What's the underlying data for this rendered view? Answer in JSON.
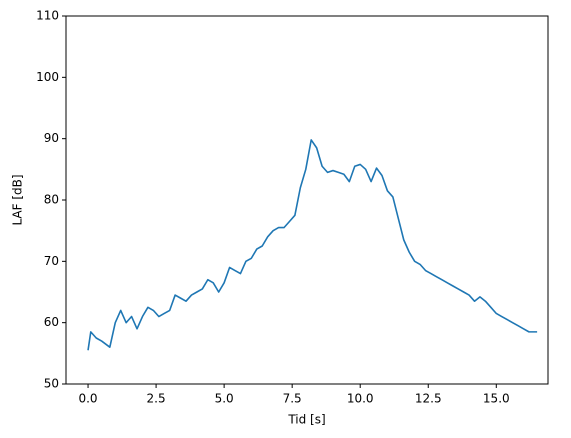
{
  "chart_data": {
    "type": "line",
    "xlabel": "Tid [s]",
    "ylabel": "LAF [dB]",
    "x": [
      0,
      0.1,
      0.3,
      0.5,
      0.8,
      1.0,
      1.2,
      1.4,
      1.6,
      1.8,
      2.0,
      2.2,
      2.4,
      2.6,
      2.8,
      3.0,
      3.2,
      3.4,
      3.6,
      3.8,
      4.0,
      4.2,
      4.4,
      4.6,
      4.8,
      5.0,
      5.2,
      5.4,
      5.6,
      5.8,
      6.0,
      6.2,
      6.4,
      6.6,
      6.8,
      7.0,
      7.2,
      7.4,
      7.6,
      7.8,
      8.0,
      8.2,
      8.4,
      8.6,
      8.8,
      9.0,
      9.2,
      9.4,
      9.6,
      9.8,
      10.0,
      10.2,
      10.4,
      10.6,
      10.8,
      11.0,
      11.2,
      11.4,
      11.6,
      11.8,
      12.0,
      12.2,
      12.4,
      12.6,
      12.8,
      13.0,
      13.2,
      13.4,
      13.6,
      13.8,
      14.0,
      14.2,
      14.4,
      14.6,
      14.8,
      15.0,
      15.2,
      15.4,
      15.6,
      15.8,
      16.0,
      16.2,
      16.4,
      16.5
    ],
    "series": [
      {
        "name": "LAF",
        "color": "#1f77b4",
        "values": [
          55.5,
          58.5,
          57.5,
          57,
          56,
          60,
          62,
          60,
          61,
          59,
          61,
          62.5,
          62,
          61,
          61.5,
          62,
          64.5,
          64,
          63.5,
          64.5,
          65,
          65.5,
          67,
          66.5,
          65,
          66.5,
          69,
          68.5,
          68,
          70,
          70.5,
          72,
          72.5,
          74,
          75,
          75.5,
          75.5,
          76.5,
          77.5,
          82,
          85,
          89.8,
          88.5,
          85.5,
          84.5,
          84.8,
          84.5,
          84.2,
          83,
          85.5,
          85.8,
          85,
          83,
          85.2,
          84,
          81.5,
          80.5,
          77,
          73.5,
          71.5,
          70,
          69.5,
          68.5,
          68,
          67.5,
          67,
          66.5,
          66,
          65.5,
          65,
          64.5,
          63.5,
          64.2,
          63.5,
          62.5,
          61.5,
          61,
          60.5,
          60,
          59.5,
          59,
          58.5,
          58.5,
          58.5
        ]
      }
    ],
    "xlim": [
      -0.81,
      16.9
    ],
    "xticks": [
      {
        "value": 0,
        "label": "0.0"
      },
      {
        "value": 2.5,
        "label": "2.5"
      },
      {
        "value": 5,
        "label": "5.0"
      },
      {
        "value": 7.5,
        "label": "7.5"
      },
      {
        "value": 10,
        "label": "10.0"
      },
      {
        "value": 12.5,
        "label": "12.5"
      },
      {
        "value": 15,
        "label": "15.0"
      }
    ],
    "ylim": [
      50,
      110
    ],
    "yticks": [
      50,
      60,
      70,
      80,
      90,
      100,
      110
    ]
  }
}
